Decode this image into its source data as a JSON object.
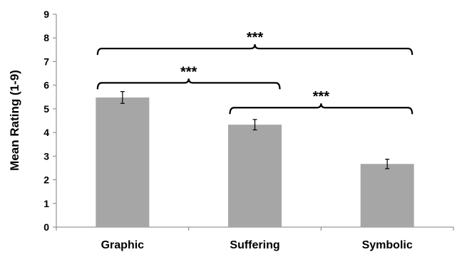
{
  "chart_data": {
    "type": "bar",
    "categories": [
      "Graphic",
      "Suffering",
      "Symbolic"
    ],
    "values": [
      5.48,
      4.33,
      2.67
    ],
    "error": [
      0.25,
      0.22,
      0.2
    ],
    "ylabel": "Mean Rating (1-9)",
    "xlabel": "",
    "ylim": [
      0,
      9
    ],
    "yticks": [
      "0",
      "1",
      "2",
      "3",
      "4",
      "5",
      "6",
      "7",
      "8",
      "9"
    ],
    "bar_color": "#a6a6a6",
    "grid": false,
    "significance": [
      {
        "from": 0,
        "to": 1,
        "level": 6.1,
        "label": "***"
      },
      {
        "from": 1,
        "to": 2,
        "level": 5.05,
        "label": "***"
      },
      {
        "from": 0,
        "to": 2,
        "level": 7.55,
        "label": "***"
      }
    ]
  }
}
